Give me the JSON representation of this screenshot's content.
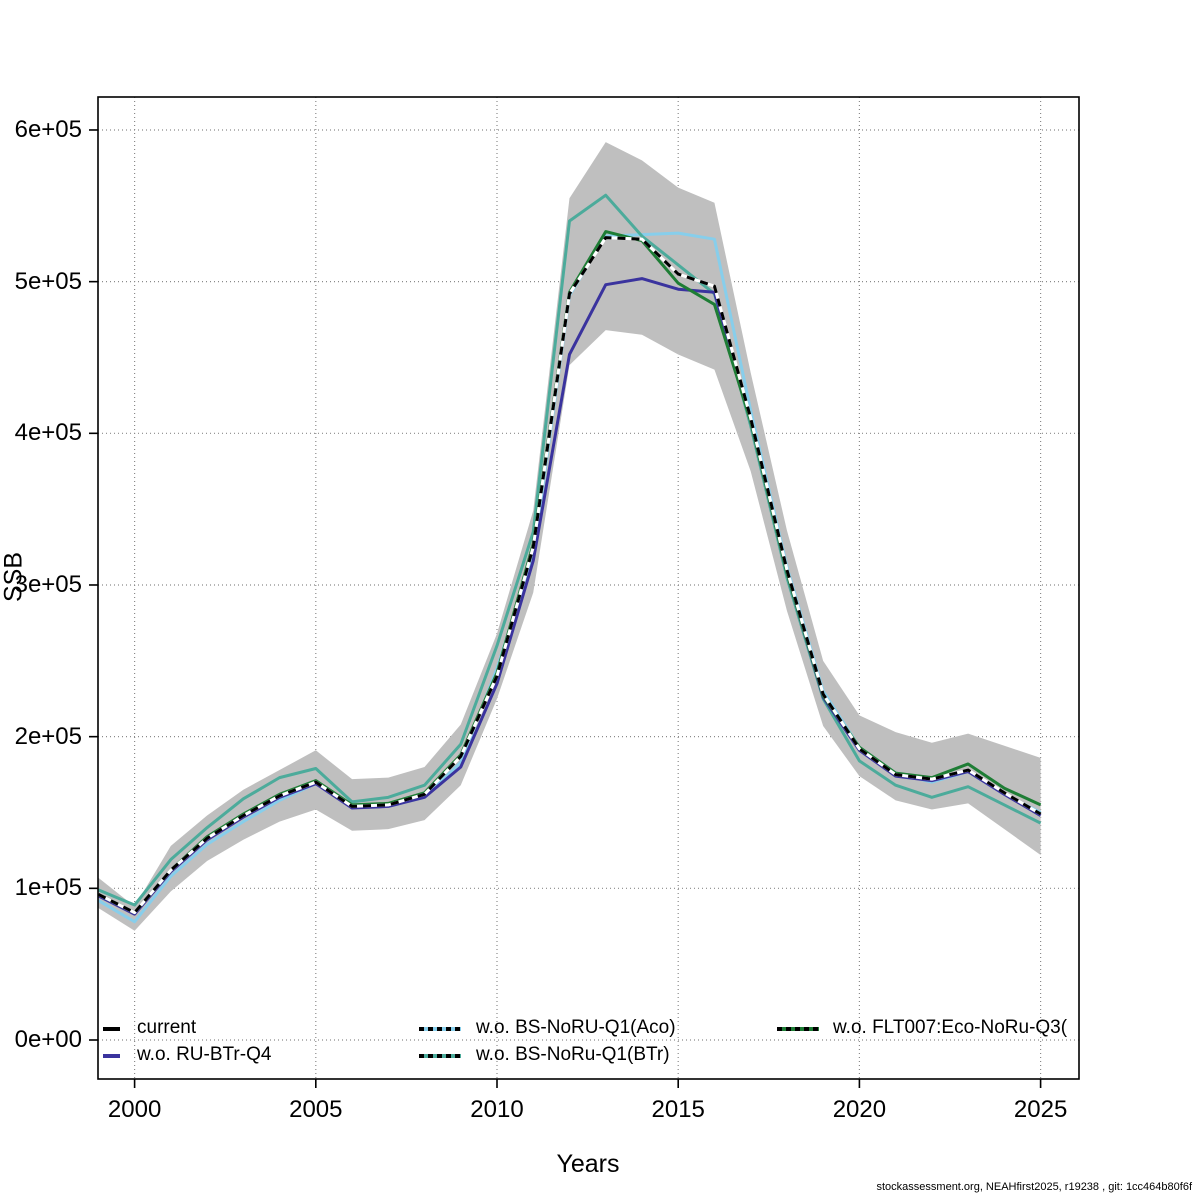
{
  "axes": {
    "xlabel": "Years",
    "ylabel": "SSB",
    "x_tick_labels": [
      "2000",
      "2005",
      "2010",
      "2015",
      "2020",
      "2025"
    ],
    "y_tick_labels": [
      "0e+00",
      "1e+05",
      "2e+05",
      "3e+05",
      "4e+05",
      "5e+05",
      "6e+05"
    ]
  },
  "legend": {
    "items": [
      {
        "label": "current",
        "color": "#000000",
        "style": "solid",
        "col": 0,
        "row": 0
      },
      {
        "label": "w.o. RU-BTr-Q4",
        "color": "#3a339e",
        "style": "solid",
        "col": 0,
        "row": 1
      },
      {
        "label": "w.o. BS-NoRU-Q1(Aco)",
        "color": "#87ceeb",
        "style": "dash-over",
        "col": 1,
        "row": 0
      },
      {
        "label": "w.o. BS-NoRu-Q1(BTr)",
        "color": "#4cab9b",
        "style": "dash-over",
        "col": 1,
        "row": 1
      },
      {
        "label": "w.o. FLT007:Eco-NoRu-Q3(",
        "color": "#1e7d35",
        "style": "dash-over",
        "col": 2,
        "row": 0
      }
    ]
  },
  "footer": {
    "text": "stockassessment.org, NEAHfirst2025, r19238 , git: 1cc464b80f6f"
  },
  "chart_data": {
    "type": "line",
    "title": "",
    "xlabel": "Years",
    "ylabel": "SSB",
    "xlim": [
      1999,
      2026
    ],
    "ylim": [
      0,
      620000
    ],
    "x_ticks": [
      2000,
      2005,
      2010,
      2015,
      2020,
      2025
    ],
    "y_ticks": [
      0,
      100000,
      200000,
      300000,
      400000,
      500000,
      600000
    ],
    "grid": "dotted",
    "legend_position": "bottom-inside",
    "x": [
      1999,
      2000,
      2001,
      2002,
      2003,
      2004,
      2005,
      2006,
      2007,
      2008,
      2009,
      2010,
      2011,
      2012,
      2013,
      2014,
      2015,
      2016,
      2017,
      2018,
      2019,
      2020,
      2021,
      2022,
      2023,
      2024,
      2025
    ],
    "band": {
      "name": "current-confidence-interval",
      "color": "#bfbfbf",
      "lower": [
        87000,
        72000,
        98000,
        118000,
        132000,
        144000,
        152000,
        138000,
        139000,
        145000,
        168000,
        225000,
        295000,
        445000,
        468000,
        465000,
        452000,
        442000,
        375000,
        283000,
        207000,
        174000,
        158000,
        152000,
        156000,
        139000,
        122000
      ],
      "upper": [
        107000,
        88000,
        128000,
        148000,
        165000,
        178000,
        191000,
        172000,
        173000,
        180000,
        208000,
        268000,
        349000,
        555000,
        592000,
        580000,
        562000,
        552000,
        440000,
        336000,
        250000,
        214000,
        203000,
        196000,
        202000,
        194000,
        186000
      ]
    },
    "series": [
      {
        "name": "w.o. BS-NoRU-Q1(Aco)",
        "color": "#87ceeb",
        "line": "solid",
        "values": [
          92000,
          78000,
          108000,
          129000,
          144000,
          158000,
          169000,
          155000,
          154000,
          160000,
          183000,
          245000,
          320000,
          491000,
          530000,
          531000,
          532000,
          528000,
          415000,
          312000,
          230000,
          193000,
          176000,
          170000,
          177000,
          162000,
          150000
        ]
      },
      {
        "name": "w.o. BS-NoRu-Q1(BTr)",
        "color": "#4cab9b",
        "line": "solid",
        "values": [
          99000,
          89000,
          119000,
          140000,
          159000,
          173000,
          179000,
          157000,
          160000,
          168000,
          195000,
          260000,
          335000,
          540000,
          557000,
          530000,
          511000,
          492000,
          405000,
          305000,
          225000,
          184000,
          168000,
          160000,
          167000,
          155000,
          143000
        ]
      },
      {
        "name": "w.o. RU-BTr-Q4",
        "color": "#3a339e",
        "line": "solid",
        "values": [
          95000,
          83000,
          111000,
          132000,
          147000,
          160000,
          169000,
          153000,
          154000,
          160000,
          180000,
          235000,
          316000,
          452000,
          498000,
          502000,
          495000,
          493000,
          408000,
          308000,
          226000,
          191000,
          174000,
          171000,
          177000,
          162000,
          148000
        ]
      },
      {
        "name": "w.o. FLT007:Eco-NoRu-Q3(",
        "color": "#1e7d35",
        "line": "solid",
        "values": [
          96000,
          84000,
          112000,
          134000,
          149000,
          162000,
          171000,
          155000,
          156000,
          163000,
          188000,
          242000,
          327000,
          493000,
          533000,
          527000,
          499000,
          485000,
          408000,
          308000,
          227000,
          193000,
          176000,
          173000,
          182000,
          166000,
          155000
        ]
      },
      {
        "name": "current",
        "color": "#000000",
        "line": "dashed",
        "values": [
          96000,
          84000,
          112000,
          133000,
          148000,
          161000,
          170000,
          154000,
          155000,
          162000,
          187000,
          240000,
          325000,
          492000,
          529000,
          528000,
          505000,
          497000,
          410000,
          310000,
          228000,
          192000,
          175000,
          172000,
          178000,
          163000,
          149000
        ]
      }
    ]
  }
}
